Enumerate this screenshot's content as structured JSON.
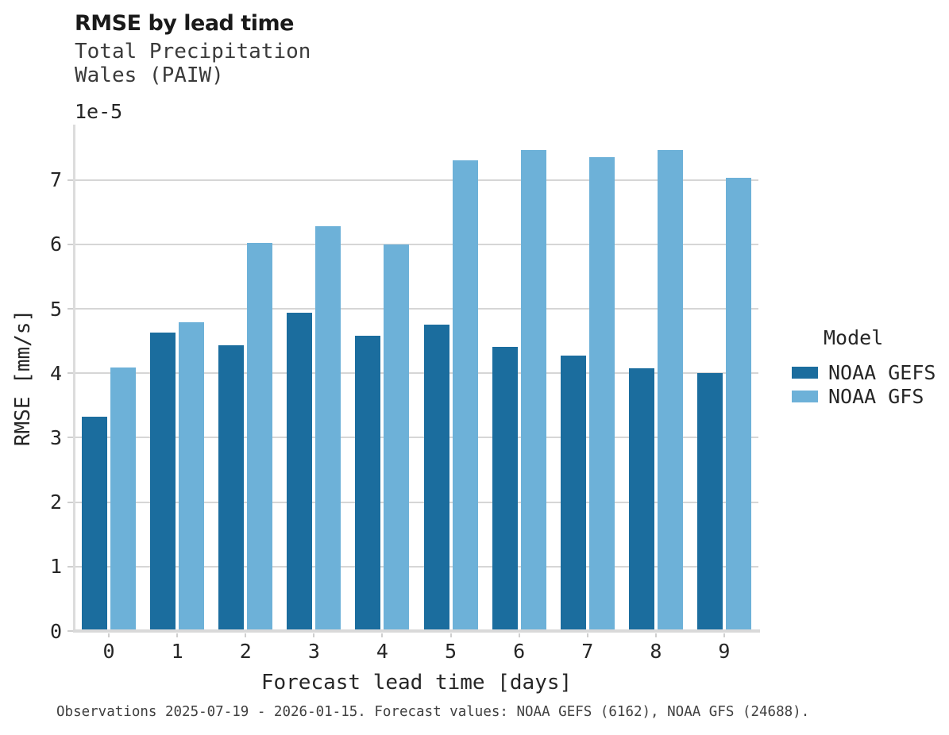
{
  "header": {
    "title": "RMSE by lead time",
    "subtitle": "Total Precipitation\nWales (PAIW)"
  },
  "axes": {
    "offset_label": "1e-5",
    "xlabel": "Forecast lead time [days]",
    "ylabel": "RMSE [mm/s]"
  },
  "legend": {
    "title": "Model",
    "entries": [
      {
        "label": "NOAA GEFS",
        "color": "#1b6d9e"
      },
      {
        "label": "NOAA GFS",
        "color": "#6db1d8"
      }
    ]
  },
  "footer": {
    "text": "Observations 2025-07-19 - 2026-01-15. Forecast values: NOAA GEFS (6162), NOAA GFS (24688)."
  },
  "chart_data": {
    "type": "bar",
    "title": "RMSE by lead time",
    "subtitle": [
      "Total Precipitation",
      "Wales (PAIW)"
    ],
    "categories": [
      0,
      1,
      2,
      3,
      4,
      5,
      6,
      7,
      8,
      9
    ],
    "series": [
      {
        "name": "NOAA GEFS",
        "color": "#1b6d9e",
        "values": [
          3.33,
          4.63,
          4.43,
          4.94,
          4.58,
          4.75,
          4.41,
          4.28,
          4.08,
          4.01
        ]
      },
      {
        "name": "NOAA GFS",
        "color": "#6db1d8",
        "values": [
          4.09,
          4.79,
          6.03,
          6.28,
          6.0,
          7.3,
          7.47,
          7.35,
          7.46,
          7.04
        ]
      }
    ],
    "value_unit": "mm/s",
    "value_scale": "1e-5",
    "xlabel": "Forecast lead time [days]",
    "ylabel": "RMSE [mm/s]",
    "ylim": [
      0,
      7.86
    ],
    "yticks": [
      0,
      1,
      2,
      3,
      4,
      5,
      6,
      7
    ],
    "grid": "horizontal",
    "legend_position": "right",
    "legend_title": "Model"
  }
}
